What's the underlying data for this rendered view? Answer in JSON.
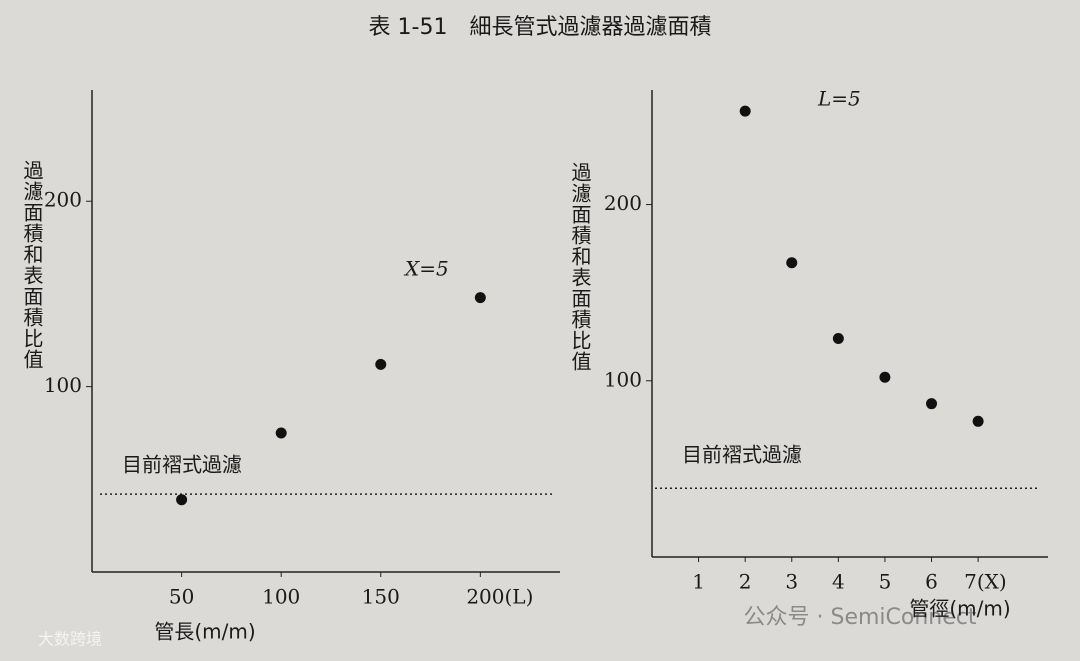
{
  "title": "表 1-51　細長管式過濾器過濾面積",
  "watermarks": [
    "公众号 · SemiConnect",
    "大数跨境"
  ],
  "chart_data": [
    {
      "type": "scatter",
      "xlabel": "管長(m/m)",
      "ylabel": "過濾面積和表面積比值",
      "color": "#111111",
      "x": [
        50,
        100,
        150,
        200
      ],
      "values": [
        39,
        75,
        112,
        148
      ],
      "xlim": [
        5,
        240
      ],
      "ylim": [
        0,
        260
      ],
      "xticks": [
        50,
        100,
        150,
        {
          "value": 200,
          "label": "200(L)"
        }
      ],
      "yticks": [
        100,
        200
      ],
      "annotation": "X=5",
      "reference_line": 42,
      "reference_label": "目前褶式過濾"
    },
    {
      "type": "scatter",
      "xlabel": "管徑(m/m)",
      "ylabel": "過濾面積和表面積比值",
      "color": "#111111",
      "x": [
        2,
        3,
        4,
        5,
        6,
        7
      ],
      "values": [
        253,
        167,
        124,
        102,
        87,
        77
      ],
      "xlim": [
        0,
        8.5
      ],
      "ylim": [
        0,
        265
      ],
      "xticks": [
        1,
        2,
        3,
        4,
        5,
        6,
        {
          "value": 7,
          "label": "7(X)"
        }
      ],
      "yticks": [
        100,
        200
      ],
      "annotation": "L=5",
      "reference_line": 39,
      "reference_label": "目前褶式過濾"
    }
  ]
}
